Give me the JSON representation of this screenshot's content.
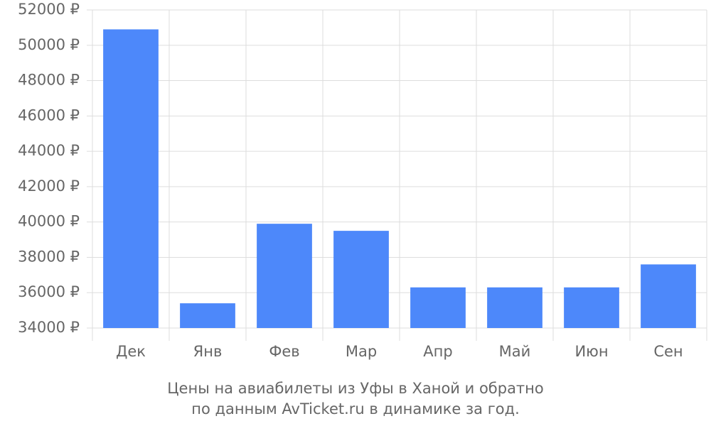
{
  "chart_data": {
    "type": "bar",
    "title": "Цены на авиабилеты из Уфы в Ханой и обратно",
    "subtitle": "по данным AvTicket.ru в динамике за год.",
    "categories": [
      "Дек",
      "Янв",
      "Фев",
      "Мар",
      "Апр",
      "Май",
      "Июн",
      "Сен"
    ],
    "values": [
      50900,
      35400,
      39900,
      39500,
      36300,
      36300,
      36300,
      37600
    ],
    "color": "#4d88fa",
    "ylim": [
      34000,
      52000
    ],
    "yticks": [
      {
        "value": 34000,
        "label": "34000 ₽"
      },
      {
        "value": 36000,
        "label": "36000 ₽"
      },
      {
        "value": 38000,
        "label": "38000 ₽"
      },
      {
        "value": 40000,
        "label": "40000 ₽"
      },
      {
        "value": 42000,
        "label": "42000 ₽"
      },
      {
        "value": 44000,
        "label": "44000 ₽"
      },
      {
        "value": 46000,
        "label": "46000 ₽"
      },
      {
        "value": 48000,
        "label": "48000 ₽"
      },
      {
        "value": 50000,
        "label": "50000 ₽"
      },
      {
        "value": 52000,
        "label": "52000 ₽"
      }
    ],
    "grid": true
  }
}
